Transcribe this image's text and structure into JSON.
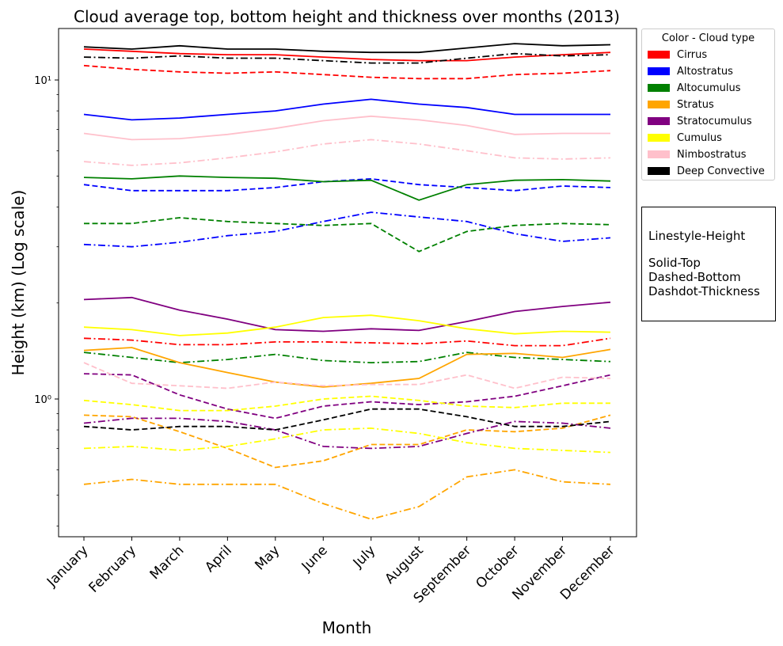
{
  "chart_data": {
    "type": "line",
    "title": "Cloud average top, bottom height and thickness over months (2013)",
    "xlabel": "Month",
    "ylabel": "Height (km) (Log scale)",
    "yscale": "log",
    "ylim": [
      0.37,
      14.5
    ],
    "y_ticks": [
      {
        "value": 1,
        "label": "10⁰"
      },
      {
        "value": 10,
        "label": "10¹"
      }
    ],
    "categories": [
      "January",
      "February",
      "March",
      "April",
      "May",
      "June",
      "July",
      "August",
      "September",
      "October",
      "November",
      "December"
    ],
    "grid": false,
    "legend": {
      "title": "Color - Cloud type",
      "placement": "outside-right-top",
      "entries": [
        {
          "label": "Cirrus",
          "color": "#ff0000"
        },
        {
          "label": "Altostratus",
          "color": "#0000ff"
        },
        {
          "label": "Altocumulus",
          "color": "#008000"
        },
        {
          "label": "Stratus",
          "color": "#ffa500"
        },
        {
          "label": "Stratocumulus",
          "color": "#800080"
        },
        {
          "label": "Cumulus",
          "color": "#ffff00"
        },
        {
          "label": "Nimbostratus",
          "color": "#ffc0cb"
        },
        {
          "label": "Deep Convective",
          "color": "#000000"
        }
      ]
    },
    "annotation": {
      "lines": [
        "Linestyle-Height",
        "",
        "Solid-Top",
        "Dashed-Bottom",
        "Dashdot-Thickness"
      ]
    },
    "linestyles": {
      "Top": "solid",
      "Bottom": "dashed",
      "Thickness": "dashdot"
    },
    "series": [
      {
        "cloud": "Cirrus",
        "measure": "Top",
        "color": "#ff0000",
        "values": [
          12.5,
          12.3,
          12.1,
          12.0,
          12.0,
          11.8,
          11.6,
          11.5,
          11.5,
          11.8,
          12.0,
          12.2
        ]
      },
      {
        "cloud": "Cirrus",
        "measure": "Bottom",
        "color": "#ff0000",
        "values": [
          11.1,
          10.8,
          10.6,
          10.5,
          10.6,
          10.4,
          10.2,
          10.1,
          10.1,
          10.4,
          10.5,
          10.7
        ]
      },
      {
        "cloud": "Cirrus",
        "measure": "Thickness",
        "color": "#ff0000",
        "values": [
          1.55,
          1.53,
          1.48,
          1.48,
          1.51,
          1.51,
          1.5,
          1.49,
          1.52,
          1.47,
          1.47,
          1.55
        ]
      },
      {
        "cloud": "Altostratus",
        "measure": "Top",
        "color": "#0000ff",
        "values": [
          7.8,
          7.5,
          7.6,
          7.8,
          8.0,
          8.4,
          8.7,
          8.4,
          8.2,
          7.8,
          7.8,
          7.8
        ]
      },
      {
        "cloud": "Altostratus",
        "measure": "Bottom",
        "color": "#0000ff",
        "values": [
          4.7,
          4.5,
          4.5,
          4.5,
          4.6,
          4.8,
          4.9,
          4.7,
          4.6,
          4.5,
          4.65,
          4.6
        ]
      },
      {
        "cloud": "Altostratus",
        "measure": "Thickness",
        "color": "#0000ff",
        "values": [
          3.05,
          3.0,
          3.1,
          3.25,
          3.35,
          3.6,
          3.85,
          3.72,
          3.6,
          3.3,
          3.12,
          3.2
        ]
      },
      {
        "cloud": "Altocumulus",
        "measure": "Top",
        "color": "#008000",
        "values": [
          4.95,
          4.9,
          5.0,
          4.95,
          4.92,
          4.8,
          4.85,
          4.2,
          4.7,
          4.85,
          4.87,
          4.82
        ]
      },
      {
        "cloud": "Altocumulus",
        "measure": "Bottom",
        "color": "#008000",
        "values": [
          3.55,
          3.55,
          3.7,
          3.6,
          3.55,
          3.5,
          3.55,
          2.9,
          3.35,
          3.5,
          3.55,
          3.52
        ]
      },
      {
        "cloud": "Altocumulus",
        "measure": "Thickness",
        "color": "#008000",
        "values": [
          1.4,
          1.35,
          1.3,
          1.33,
          1.38,
          1.32,
          1.3,
          1.31,
          1.4,
          1.35,
          1.33,
          1.31
        ]
      },
      {
        "cloud": "Stratus",
        "measure": "Top",
        "color": "#ffa500",
        "values": [
          1.42,
          1.45,
          1.3,
          1.21,
          1.13,
          1.09,
          1.12,
          1.16,
          1.38,
          1.39,
          1.35,
          1.43
        ]
      },
      {
        "cloud": "Stratus",
        "measure": "Bottom",
        "color": "#ffa500",
        "values": [
          0.89,
          0.88,
          0.79,
          0.7,
          0.61,
          0.64,
          0.72,
          0.72,
          0.8,
          0.79,
          0.81,
          0.89
        ]
      },
      {
        "cloud": "Stratus",
        "measure": "Thickness",
        "color": "#ffa500",
        "values": [
          0.54,
          0.56,
          0.54,
          0.54,
          0.54,
          0.47,
          0.42,
          0.46,
          0.57,
          0.6,
          0.55,
          0.54
        ]
      },
      {
        "cloud": "Stratocumulus",
        "measure": "Top",
        "color": "#800080",
        "values": [
          2.05,
          2.08,
          1.9,
          1.78,
          1.65,
          1.63,
          1.66,
          1.64,
          1.75,
          1.88,
          1.95,
          2.01
        ]
      },
      {
        "cloud": "Stratocumulus",
        "measure": "Bottom",
        "color": "#800080",
        "values": [
          1.2,
          1.19,
          1.03,
          0.93,
          0.87,
          0.95,
          0.98,
          0.96,
          0.98,
          1.02,
          1.1,
          1.19
        ]
      },
      {
        "cloud": "Stratocumulus",
        "measure": "Thickness",
        "color": "#800080",
        "values": [
          0.84,
          0.87,
          0.87,
          0.85,
          0.8,
          0.71,
          0.7,
          0.71,
          0.78,
          0.85,
          0.84,
          0.81
        ]
      },
      {
        "cloud": "Cumulus",
        "measure": "Top",
        "color": "#ffff00",
        "values": [
          1.68,
          1.65,
          1.58,
          1.61,
          1.68,
          1.8,
          1.83,
          1.76,
          1.66,
          1.6,
          1.63,
          1.62
        ]
      },
      {
        "cloud": "Cumulus",
        "measure": "Bottom",
        "color": "#ffff00",
        "values": [
          0.99,
          0.96,
          0.92,
          0.92,
          0.95,
          1.0,
          1.02,
          0.99,
          0.95,
          0.94,
          0.97,
          0.97
        ]
      },
      {
        "cloud": "Cumulus",
        "measure": "Thickness",
        "color": "#ffff00",
        "values": [
          0.7,
          0.71,
          0.69,
          0.71,
          0.75,
          0.8,
          0.81,
          0.78,
          0.73,
          0.7,
          0.69,
          0.68
        ]
      },
      {
        "cloud": "Nimbostratus",
        "measure": "Top",
        "color": "#ffc0cb",
        "values": [
          6.8,
          6.5,
          6.55,
          6.75,
          7.05,
          7.45,
          7.7,
          7.5,
          7.2,
          6.75,
          6.8,
          6.8
        ]
      },
      {
        "cloud": "Nimbostratus",
        "measure": "Bottom",
        "color": "#ffc0cb",
        "values": [
          1.3,
          1.12,
          1.1,
          1.08,
          1.13,
          1.1,
          1.11,
          1.11,
          1.19,
          1.08,
          1.17,
          1.16
        ]
      },
      {
        "cloud": "Nimbostratus",
        "measure": "Thickness",
        "color": "#ffc0cb",
        "values": [
          5.55,
          5.4,
          5.5,
          5.7,
          5.95,
          6.3,
          6.5,
          6.3,
          6.0,
          5.7,
          5.65,
          5.7
        ]
      },
      {
        "cloud": "Deep Convective",
        "measure": "Top",
        "color": "#000000",
        "values": [
          12.7,
          12.5,
          12.8,
          12.5,
          12.5,
          12.3,
          12.2,
          12.2,
          12.6,
          13.0,
          12.8,
          12.9
        ]
      },
      {
        "cloud": "Deep Convective",
        "measure": "Bottom",
        "color": "#000000",
        "values": [
          0.82,
          0.8,
          0.82,
          0.82,
          0.8,
          0.86,
          0.93,
          0.93,
          0.88,
          0.82,
          0.82,
          0.85
        ]
      },
      {
        "cloud": "Deep Convective",
        "measure": "Thickness",
        "color": "#000000",
        "values": [
          11.8,
          11.7,
          11.9,
          11.7,
          11.7,
          11.5,
          11.3,
          11.3,
          11.7,
          12.1,
          11.9,
          12.0
        ]
      }
    ]
  }
}
